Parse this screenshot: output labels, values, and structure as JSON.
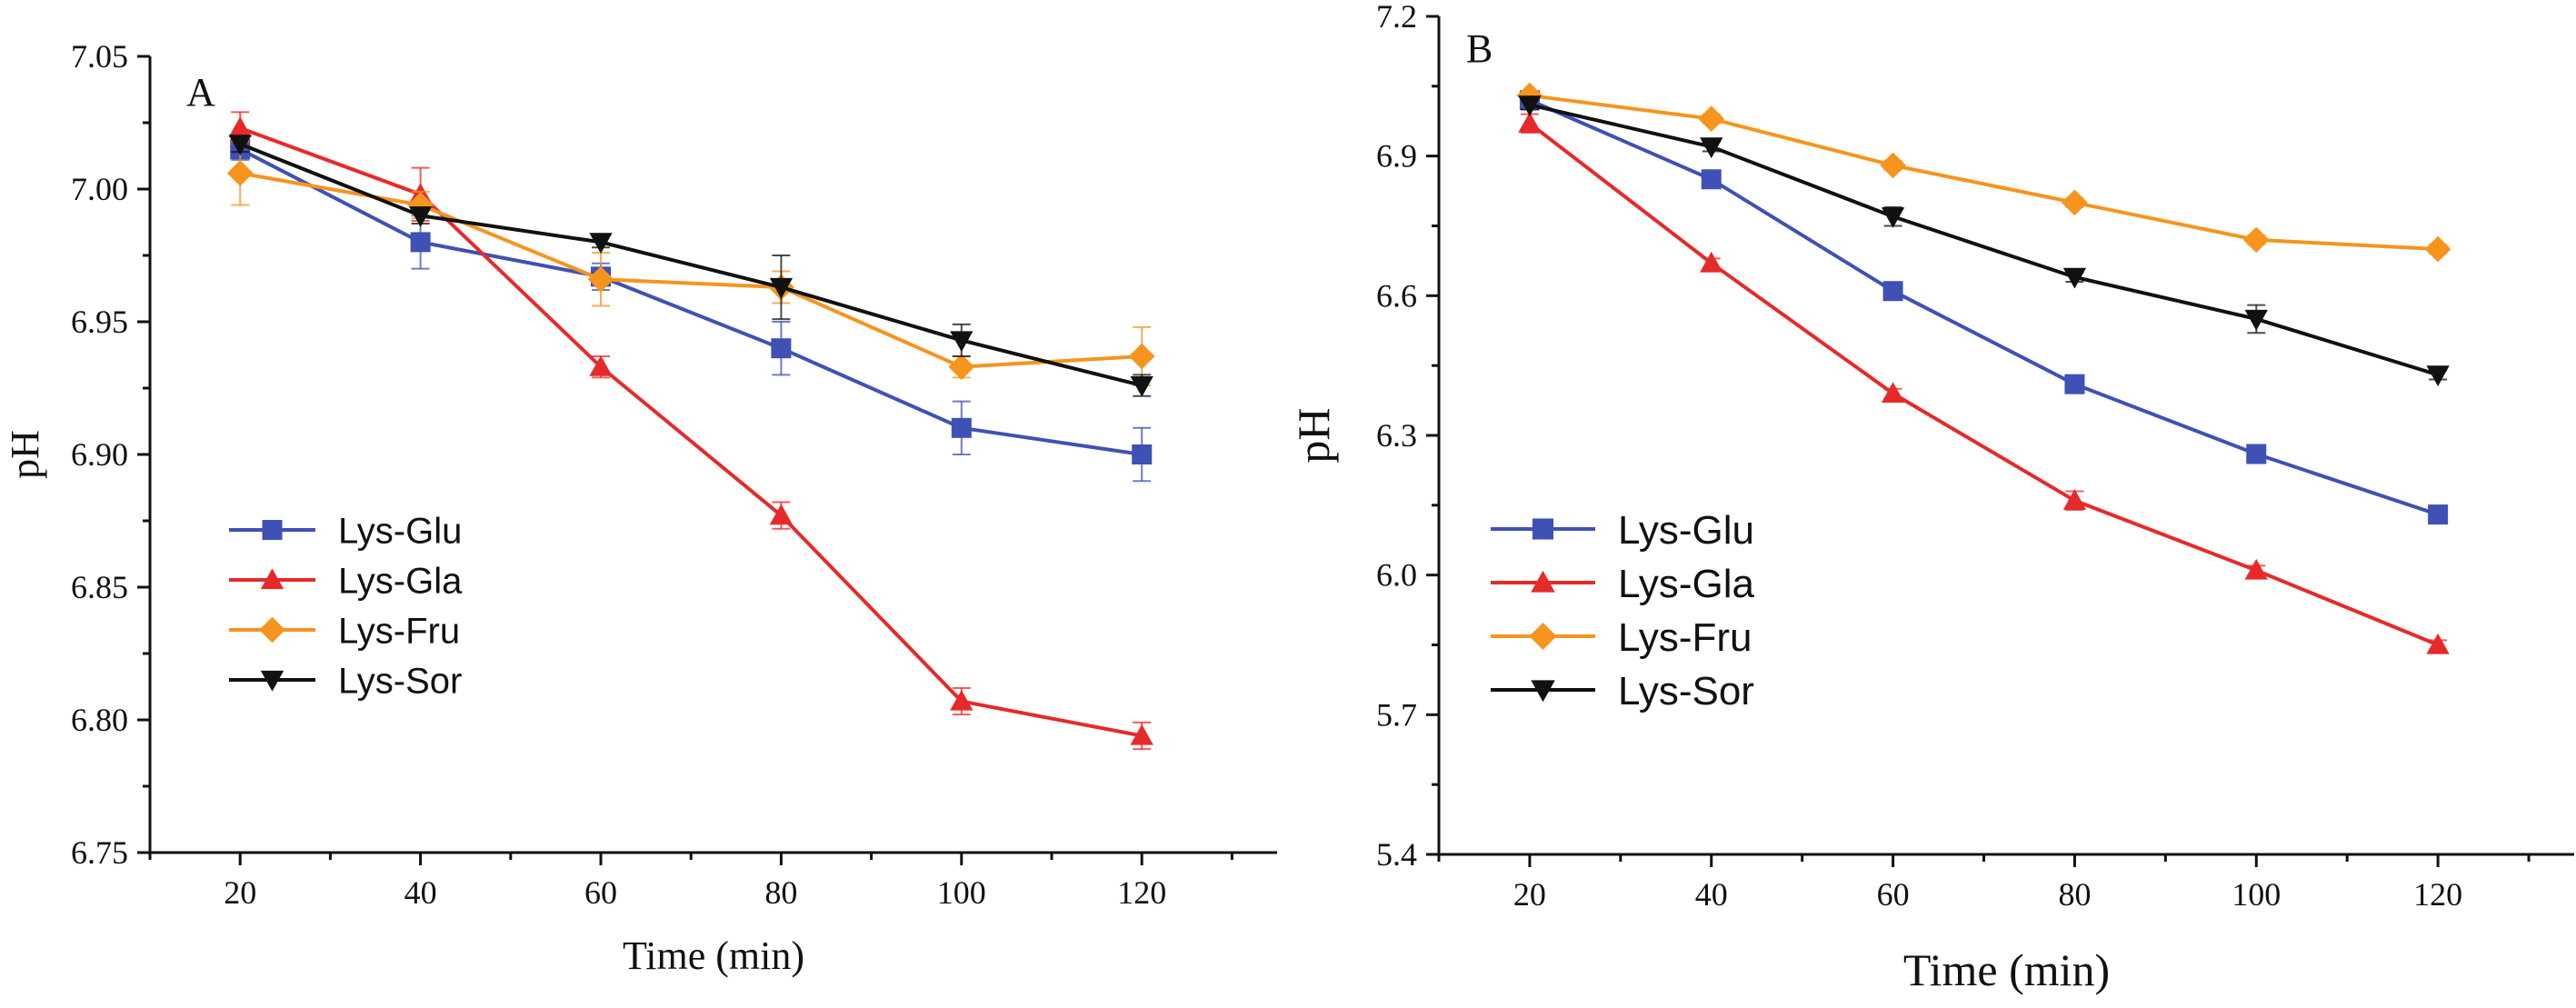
{
  "figure": {
    "panels": [
      {
        "id": "A",
        "panel_label": "A",
        "xlabel": "Time (min)",
        "ylabel": "pH",
        "xlim": [
          10,
          135
        ],
        "ylim": [
          6.75,
          7.05
        ],
        "xticks": [
          20,
          40,
          60,
          80,
          100,
          120
        ],
        "yticks": [
          6.75,
          6.8,
          6.85,
          6.9,
          6.95,
          7.0,
          7.05
        ],
        "ytick_labels": [
          "6.75",
          "6.80",
          "6.85",
          "6.90",
          "6.95",
          "7.00",
          "7.05"
        ],
        "xtick_labels": [
          "20",
          "40",
          "60",
          "80",
          "100",
          "120"
        ]
      },
      {
        "id": "B",
        "panel_label": "B",
        "xlabel": "Time (min)",
        "ylabel": "pH",
        "xlim": [
          10,
          135
        ],
        "ylim": [
          5.4,
          7.2
        ],
        "xticks": [
          20,
          40,
          60,
          80,
          100,
          120
        ],
        "yticks": [
          5.4,
          5.7,
          6.0,
          6.3,
          6.6,
          6.9,
          7.2
        ],
        "ytick_labels": [
          "5.4",
          "5.7",
          "6.0",
          "6.3",
          "6.6",
          "6.9",
          "7.2"
        ],
        "xtick_labels": [
          "20",
          "40",
          "60",
          "80",
          "100",
          "120"
        ]
      }
    ]
  },
  "chart_data": [
    {
      "type": "line",
      "panel": "A",
      "xlabel": "Time (min)",
      "ylabel": "pH",
      "xlim": [
        10,
        135
      ],
      "ylim": [
        6.75,
        7.05
      ],
      "grid": false,
      "legend_position": "left",
      "x": [
        20,
        40,
        60,
        80,
        100,
        120
      ],
      "series": [
        {
          "name": "Lys-Glu",
          "color": "#3f51b5",
          "marker": "square",
          "values": [
            7.015,
            6.98,
            6.967,
            6.94,
            6.91,
            6.9
          ],
          "errors": [
            0.004,
            0.01,
            0.005,
            0.01,
            0.01,
            0.01
          ]
        },
        {
          "name": "Lys-Gla",
          "color": "#e62a2a",
          "marker": "triangle-up",
          "values": [
            7.023,
            6.998,
            6.933,
            6.877,
            6.807,
            6.794
          ],
          "errors": [
            0.006,
            0.01,
            0.004,
            0.005,
            0.005,
            0.005
          ]
        },
        {
          "name": "Lys-Fru",
          "color": "#f7941d",
          "marker": "diamond",
          "values": [
            7.006,
            6.994,
            6.966,
            6.963,
            6.933,
            6.937
          ],
          "errors": [
            0.012,
            0.005,
            0.01,
            0.006,
            0.004,
            0.011
          ]
        },
        {
          "name": "Lys-Sor",
          "color": "#111111",
          "marker": "triangle-down",
          "values": [
            7.017,
            6.99,
            6.98,
            6.963,
            6.943,
            6.926
          ],
          "errors": [
            0.003,
            0.003,
            0.002,
            0.012,
            0.006,
            0.004
          ]
        }
      ]
    },
    {
      "type": "line",
      "panel": "B",
      "xlabel": "Time (min)",
      "ylabel": "pH",
      "xlim": [
        10,
        135
      ],
      "ylim": [
        5.4,
        7.2
      ],
      "grid": false,
      "legend_position": "bottom-left",
      "x": [
        20,
        40,
        60,
        80,
        100,
        120
      ],
      "series": [
        {
          "name": "Lys-Glu",
          "color": "#3f51b5",
          "marker": "square",
          "values": [
            7.02,
            6.85,
            6.61,
            6.41,
            6.26,
            6.13
          ],
          "errors": [
            0.01,
            0.01,
            0.01,
            0.01,
            0.01,
            0.01
          ]
        },
        {
          "name": "Lys-Gla",
          "color": "#e62a2a",
          "marker": "triangle-up",
          "values": [
            6.97,
            6.67,
            6.39,
            6.16,
            6.01,
            5.85
          ],
          "errors": [
            0.02,
            0.01,
            0.01,
            0.02,
            0.01,
            0.01
          ]
        },
        {
          "name": "Lys-Fru",
          "color": "#f7941d",
          "marker": "diamond",
          "values": [
            7.03,
            6.98,
            6.88,
            6.8,
            6.72,
            6.7
          ],
          "errors": [
            0.01,
            0.01,
            0.01,
            0.01,
            0.01,
            0.01
          ]
        },
        {
          "name": "Lys-Sor",
          "color": "#111111",
          "marker": "triangle-down",
          "values": [
            7.01,
            6.92,
            6.77,
            6.64,
            6.55,
            6.43
          ],
          "errors": [
            0.01,
            0.01,
            0.02,
            0.01,
            0.03,
            0.01
          ]
        }
      ]
    }
  ]
}
